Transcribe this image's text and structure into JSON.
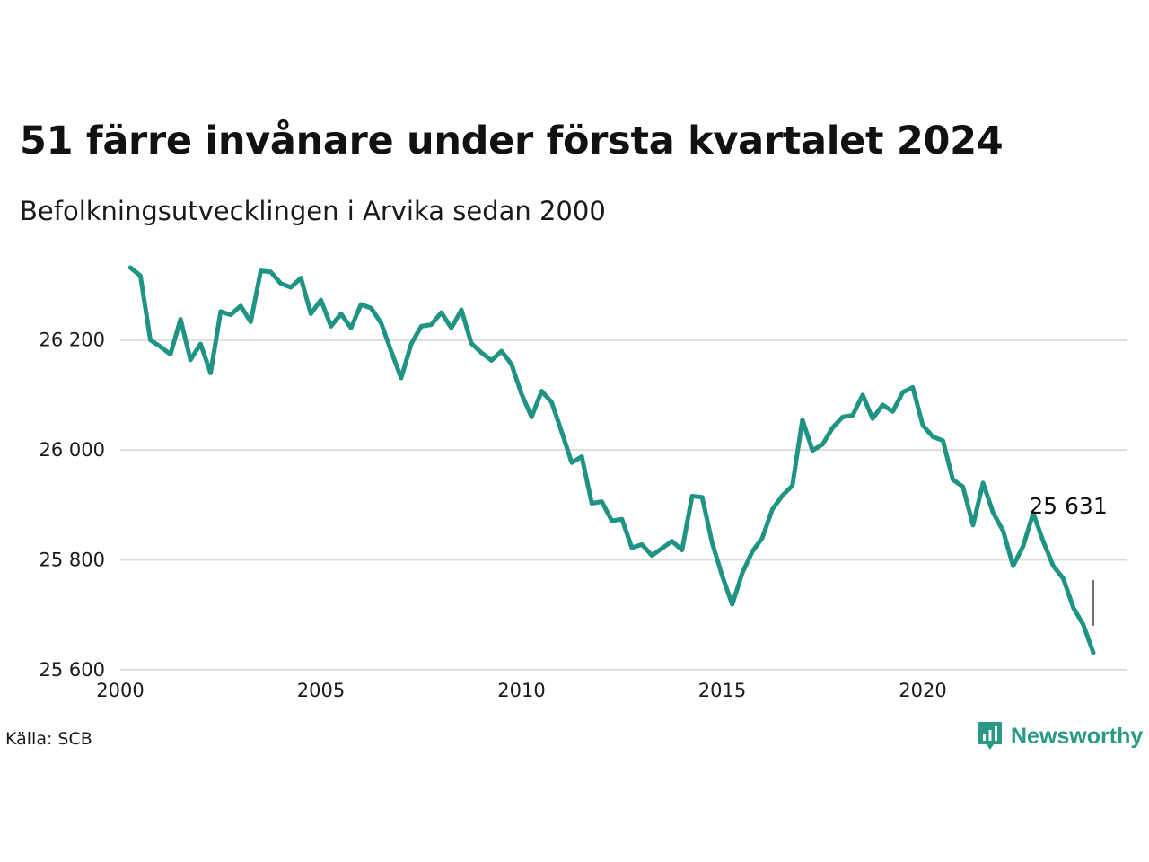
{
  "title": "51 färre invånare under första kvartalet 2024",
  "subtitle": "Befolkningsutvecklingen i Arvika sedan 2000",
  "source": "Källa: SCB",
  "brand": {
    "name": "Newsworthy",
    "icon": "newsworthy-logo-icon",
    "color": "#1f9484"
  },
  "colors": {
    "line": "#1f9484",
    "grid": "#dcdcdc"
  },
  "chart_data": {
    "type": "line",
    "title": "51 färre invånare under första kvartalet 2024",
    "subtitle": "Befolkningsutvecklingen i Arvika sedan 2000",
    "xlabel": "",
    "ylabel": "",
    "grid": true,
    "legend": "none",
    "xlim": [
      2000,
      2025.1
    ],
    "ylim": [
      25590,
      26345
    ],
    "x_ticks": [
      {
        "value": 2000,
        "label": "2000"
      },
      {
        "value": 2005,
        "label": "2005"
      },
      {
        "value": 2010,
        "label": "2010"
      },
      {
        "value": 2015,
        "label": "2015"
      },
      {
        "value": 2020,
        "label": "2020"
      }
    ],
    "y_ticks": [
      {
        "value": 25600,
        "label": "25 600"
      },
      {
        "value": 25800,
        "label": "25 800"
      },
      {
        "value": 26000,
        "label": "26 000"
      },
      {
        "value": 26200,
        "label": "26 200"
      }
    ],
    "series": [
      {
        "x": [
          2000.25,
          2000.5,
          2000.75,
          2001,
          2001.25,
          2001.5,
          2001.75,
          2002,
          2002.25,
          2002.5,
          2002.75,
          2003,
          2003.25,
          2003.5,
          2003.75,
          2004,
          2004.25,
          2004.5,
          2004.75,
          2005,
          2005.25,
          2005.5,
          2005.75,
          2006,
          2006.25,
          2006.5,
          2006.75,
          2007,
          2007.25,
          2007.5,
          2007.75,
          2008,
          2008.25,
          2008.5,
          2008.75,
          2009,
          2009.25,
          2009.5,
          2009.75,
          2010,
          2010.25,
          2010.5,
          2010.75,
          2011,
          2011.25,
          2011.5,
          2011.75,
          2012,
          2012.25,
          2012.5,
          2012.75,
          2013,
          2013.25,
          2013.5,
          2013.75,
          2014,
          2014.25,
          2014.5,
          2014.75,
          2015,
          2015.25,
          2015.5,
          2015.75,
          2016,
          2016.25,
          2016.5,
          2016.75,
          2017,
          2017.25,
          2017.5,
          2017.75,
          2018,
          2018.25,
          2018.5,
          2018.75,
          2019,
          2019.25,
          2019.5,
          2019.75,
          2020,
          2020.25,
          2020.5,
          2020.75,
          2021,
          2021.25,
          2021.5,
          2021.75,
          2022,
          2022.25,
          2022.5,
          2022.75,
          2023,
          2023.25,
          2023.5,
          2023.75,
          2024,
          2024.25
        ],
        "y": [
          26332,
          26317,
          26200,
          26188,
          26174,
          26238,
          26164,
          26193,
          26140,
          26252,
          26246,
          26262,
          26233,
          26326,
          26324,
          26303,
          26296,
          26313,
          26248,
          26273,
          26225,
          26248,
          26222,
          26265,
          26258,
          26231,
          26180,
          26131,
          26193,
          26225,
          26228,
          26250,
          26222,
          26255,
          26194,
          26177,
          26163,
          26180,
          26156,
          26102,
          26060,
          26107,
          26087,
          26033,
          25977,
          25988,
          25903,
          25906,
          25871,
          25874,
          25822,
          25828,
          25808,
          25821,
          25834,
          25818,
          25916,
          25914,
          25831,
          25771,
          25719,
          25776,
          25815,
          25840,
          25892,
          25917,
          25935,
          26055,
          25999,
          26010,
          26040,
          26060,
          26063,
          26100,
          26057,
          26082,
          26070,
          26105,
          26114,
          26045,
          26024,
          26017,
          25946,
          25933,
          25863,
          25940,
          25886,
          25853,
          25789,
          25825,
          25885,
          25834,
          25789,
          25766,
          25713,
          25682,
          25631
        ]
      }
    ],
    "annotations": [
      {
        "text": "25 631",
        "x": 2024.25,
        "y": 25631
      }
    ]
  }
}
